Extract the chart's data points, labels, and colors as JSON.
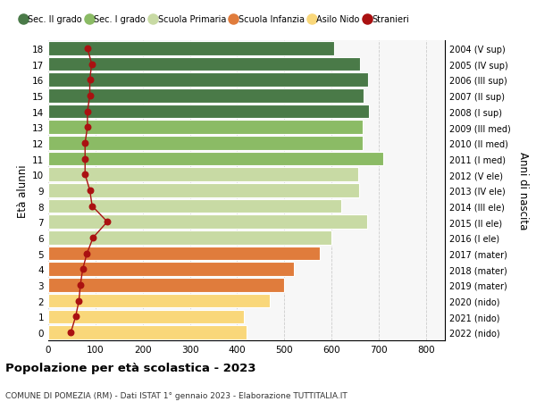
{
  "ages": [
    0,
    1,
    2,
    3,
    4,
    5,
    6,
    7,
    8,
    9,
    10,
    11,
    12,
    13,
    14,
    15,
    16,
    17,
    18
  ],
  "right_labels": [
    "2022 (nido)",
    "2021 (nido)",
    "2020 (nido)",
    "2019 (mater)",
    "2018 (mater)",
    "2017 (mater)",
    "2016 (I ele)",
    "2015 (II ele)",
    "2014 (III ele)",
    "2013 (IV ele)",
    "2012 (V ele)",
    "2011 (I med)",
    "2010 (II med)",
    "2009 (III med)",
    "2008 (I sup)",
    "2007 (II sup)",
    "2006 (III sup)",
    "2005 (IV sup)",
    "2004 (V sup)"
  ],
  "bar_values": [
    420,
    415,
    470,
    500,
    520,
    575,
    600,
    675,
    620,
    658,
    656,
    710,
    665,
    665,
    680,
    668,
    678,
    660,
    605
  ],
  "bar_colors": [
    "#F9D77A",
    "#F9D77A",
    "#F9D77A",
    "#E07C3C",
    "#E07C3C",
    "#E07C3C",
    "#C8DAA4",
    "#C8DAA4",
    "#C8DAA4",
    "#C8DAA4",
    "#C8DAA4",
    "#8BBB65",
    "#8BBB65",
    "#8BBB65",
    "#4A7A48",
    "#4A7A48",
    "#4A7A48",
    "#4A7A48",
    "#4A7A48"
  ],
  "stranieri_values": [
    48,
    58,
    65,
    68,
    73,
    82,
    95,
    125,
    93,
    88,
    78,
    78,
    78,
    83,
    83,
    88,
    88,
    92,
    83
  ],
  "legend_labels": [
    "Sec. II grado",
    "Sec. I grado",
    "Scuola Primaria",
    "Scuola Infanzia",
    "Asilo Nido",
    "Stranieri"
  ],
  "legend_colors": [
    "#4A7A48",
    "#8BBB65",
    "#C8DAA4",
    "#E07C3C",
    "#F9D77A",
    "#AA1111"
  ],
  "xlabel_vals": [
    0,
    100,
    200,
    300,
    400,
    500,
    600,
    700,
    800
  ],
  "xlim": [
    0,
    840
  ],
  "title_main": "Popolazione per età scolastica - 2023",
  "title_sub": "COMUNE DI POMEZIA (RM) - Dati ISTAT 1° gennaio 2023 - Elaborazione TUTTITALIA.IT",
  "ylabel_left": "Età alunni",
  "ylabel_right": "Anni di nascita",
  "bg_color": "#FFFFFF",
  "plot_bg_color": "#F7F7F7"
}
